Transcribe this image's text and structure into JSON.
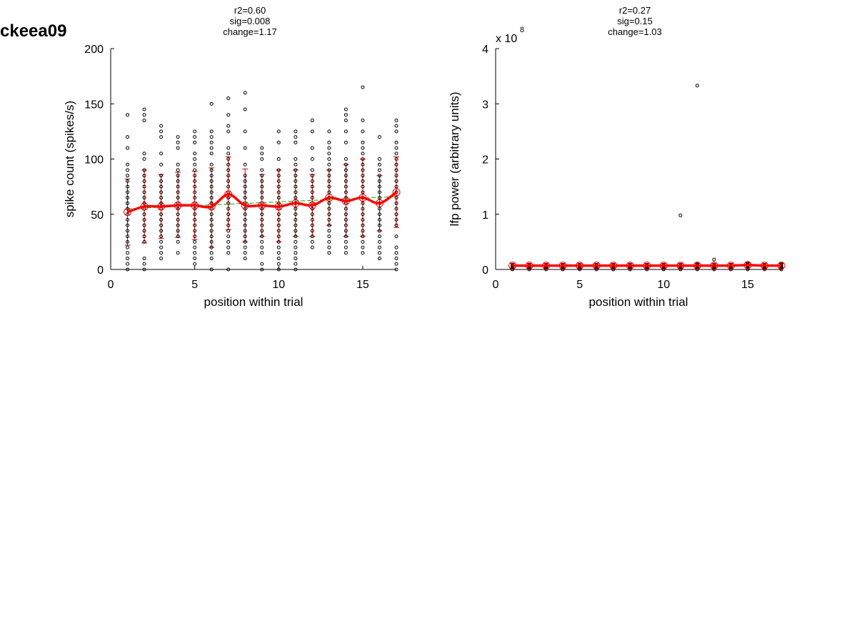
{
  "figure": {
    "label": "ckeea09",
    "colors": {
      "points": "#000000",
      "mean_line": "#ff0000",
      "error_bars": "#cc0000",
      "fit_line": "#00aa00",
      "background": "#ffffff"
    }
  },
  "chart_data": [
    {
      "type": "scatter",
      "title_lines": [
        "r2=0.60",
        "sig=0.008",
        "change=1.17"
      ],
      "xlabel": "position within trial",
      "ylabel": "spike count (spikes/s)",
      "xlim": [
        0,
        17
      ],
      "ylim": [
        0,
        200
      ],
      "xticks": [
        0,
        5,
        10,
        15
      ],
      "yticks": [
        0,
        50,
        100,
        150,
        200
      ],
      "exponent": "",
      "grid": false,
      "points": [
        {
          "x": 1,
          "y": [
            0,
            5,
            10,
            15,
            20,
            25,
            30,
            35,
            40,
            45,
            50,
            55,
            60,
            65,
            70,
            75,
            80,
            85,
            90,
            95,
            110,
            120,
            140
          ]
        },
        {
          "x": 2,
          "y": [
            0,
            5,
            10,
            25,
            30,
            35,
            40,
            45,
            50,
            55,
            60,
            65,
            70,
            75,
            80,
            85,
            90,
            100,
            105,
            135,
            140,
            145
          ]
        },
        {
          "x": 3,
          "y": [
            10,
            15,
            20,
            25,
            30,
            35,
            40,
            45,
            50,
            55,
            60,
            65,
            70,
            75,
            80,
            85,
            95,
            105,
            120,
            125,
            130
          ]
        },
        {
          "x": 4,
          "y": [
            15,
            25,
            30,
            35,
            40,
            45,
            50,
            55,
            60,
            65,
            70,
            75,
            80,
            85,
            90,
            95,
            110,
            115,
            120
          ]
        },
        {
          "x": 5,
          "y": [
            5,
            10,
            15,
            20,
            25,
            30,
            35,
            40,
            45,
            50,
            55,
            60,
            65,
            70,
            75,
            80,
            85,
            90,
            95,
            100,
            105,
            115,
            120,
            125
          ]
        },
        {
          "x": 6,
          "y": [
            0,
            10,
            15,
            20,
            25,
            30,
            35,
            40,
            45,
            50,
            55,
            60,
            65,
            70,
            75,
            80,
            85,
            90,
            95,
            105,
            110,
            115,
            120,
            125,
            150
          ]
        },
        {
          "x": 7,
          "y": [
            0,
            15,
            20,
            25,
            30,
            35,
            40,
            45,
            50,
            55,
            60,
            65,
            70,
            75,
            80,
            85,
            90,
            95,
            100,
            105,
            110,
            125,
            130,
            140,
            155
          ]
        },
        {
          "x": 8,
          "y": [
            10,
            15,
            20,
            25,
            30,
            35,
            40,
            45,
            50,
            55,
            60,
            65,
            70,
            75,
            80,
            85,
            95,
            110,
            125,
            145,
            160
          ]
        },
        {
          "x": 9,
          "y": [
            0,
            5,
            15,
            20,
            25,
            30,
            35,
            40,
            45,
            50,
            55,
            60,
            65,
            70,
            75,
            80,
            85,
            90,
            100,
            105,
            110
          ]
        },
        {
          "x": 10,
          "y": [
            0,
            5,
            10,
            15,
            20,
            25,
            30,
            35,
            40,
            45,
            50,
            55,
            60,
            65,
            70,
            75,
            80,
            85,
            90,
            100,
            115,
            125
          ]
        },
        {
          "x": 11,
          "y": [
            0,
            5,
            10,
            15,
            20,
            25,
            30,
            35,
            40,
            45,
            50,
            55,
            60,
            65,
            70,
            75,
            80,
            85,
            90,
            95,
            100,
            115,
            120,
            125
          ]
        },
        {
          "x": 12,
          "y": [
            20,
            25,
            30,
            35,
            40,
            45,
            50,
            55,
            60,
            65,
            70,
            75,
            80,
            85,
            90,
            100,
            110,
            125,
            135
          ]
        },
        {
          "x": 13,
          "y": [
            15,
            20,
            25,
            30,
            35,
            40,
            45,
            50,
            55,
            60,
            65,
            70,
            75,
            80,
            85,
            90,
            95,
            100,
            105,
            110,
            115,
            125
          ]
        },
        {
          "x": 14,
          "y": [
            15,
            20,
            25,
            30,
            35,
            40,
            45,
            50,
            55,
            60,
            65,
            70,
            75,
            80,
            85,
            90,
            95,
            100,
            115,
            125,
            135,
            140,
            145
          ]
        },
        {
          "x": 15,
          "y": [
            15,
            20,
            25,
            30,
            35,
            40,
            45,
            50,
            55,
            60,
            65,
            70,
            75,
            80,
            85,
            90,
            95,
            100,
            105,
            110,
            115,
            125,
            135,
            165
          ]
        },
        {
          "x": 16,
          "y": [
            10,
            15,
            20,
            25,
            30,
            35,
            40,
            45,
            50,
            55,
            60,
            65,
            70,
            75,
            80,
            85,
            90,
            95,
            100,
            120
          ]
        },
        {
          "x": 17,
          "y": [
            0,
            5,
            10,
            15,
            20,
            30,
            40,
            45,
            50,
            55,
            60,
            65,
            70,
            75,
            80,
            85,
            90,
            95,
            100,
            105,
            110,
            115,
            125,
            130,
            135
          ]
        }
      ],
      "series": [
        {
          "role": "mean",
          "x": [
            1,
            2,
            3,
            4,
            5,
            6,
            7,
            8,
            9,
            10,
            11,
            12,
            13,
            14,
            15,
            16,
            17
          ],
          "y": [
            52,
            57,
            57,
            58,
            58,
            57,
            68,
            58,
            58,
            57,
            60,
            58,
            65,
            62,
            65,
            60,
            70
          ]
        },
        {
          "role": "error",
          "x": [
            1,
            2,
            3,
            4,
            5,
            6,
            7,
            8,
            9,
            10,
            11,
            12,
            13,
            14,
            15,
            16,
            17
          ],
          "low": [
            22,
            24,
            28,
            29,
            27,
            20,
            36,
            25,
            30,
            25,
            30,
            30,
            40,
            30,
            30,
            35,
            38
          ],
          "high": [
            82,
            90,
            86,
            88,
            89,
            92,
            102,
            91,
            86,
            90,
            90,
            86,
            90,
            95,
            100,
            85,
            102
          ]
        },
        {
          "role": "fit",
          "x": [
            1,
            17
          ],
          "y": [
            55,
            66
          ]
        }
      ]
    },
    {
      "type": "scatter",
      "title_lines": [
        "r2=0.27",
        "sig=0.15",
        "change=1.03"
      ],
      "xlabel": "position within trial",
      "ylabel": "lfp power (arbitrary units)",
      "xlim": [
        0,
        17
      ],
      "ylim": [
        0,
        4
      ],
      "xticks": [
        0,
        5,
        10,
        15
      ],
      "yticks": [
        0,
        1,
        2,
        3,
        4
      ],
      "exponent": {
        "base": "x 10",
        "power": "8"
      },
      "grid": false,
      "points": [
        {
          "x": 1,
          "y": [
            0,
            0.02,
            0.04,
            0.06,
            0.08
          ]
        },
        {
          "x": 2,
          "y": [
            0,
            0.02,
            0.04,
            0.06,
            0.08
          ]
        },
        {
          "x": 3,
          "y": [
            0,
            0.02,
            0.04,
            0.06,
            0.08
          ]
        },
        {
          "x": 4,
          "y": [
            0,
            0.02,
            0.04,
            0.06,
            0.08
          ]
        },
        {
          "x": 5,
          "y": [
            0,
            0.02,
            0.04,
            0.06,
            0.08
          ]
        },
        {
          "x": 6,
          "y": [
            0,
            0.02,
            0.04,
            0.06,
            0.08
          ]
        },
        {
          "x": 7,
          "y": [
            0,
            0.02,
            0.04,
            0.06,
            0.08
          ]
        },
        {
          "x": 8,
          "y": [
            0,
            0.02,
            0.04,
            0.06,
            0.08
          ]
        },
        {
          "x": 9,
          "y": [
            0,
            0.02,
            0.04,
            0.06,
            0.08
          ]
        },
        {
          "x": 10,
          "y": [
            0,
            0.02,
            0.04,
            0.06,
            0.08
          ]
        },
        {
          "x": 11,
          "y": [
            0,
            0.02,
            0.04,
            0.06,
            0.08,
            0.98
          ]
        },
        {
          "x": 12,
          "y": [
            0,
            0.02,
            0.04,
            0.06,
            0.08,
            0.1,
            3.33
          ]
        },
        {
          "x": 13,
          "y": [
            0,
            0.02,
            0.04,
            0.06,
            0.08,
            0.18
          ]
        },
        {
          "x": 14,
          "y": [
            0,
            0.02,
            0.04,
            0.06,
            0.08
          ]
        },
        {
          "x": 15,
          "y": [
            0,
            0.02,
            0.04,
            0.06,
            0.08,
            0.1,
            0.12
          ]
        },
        {
          "x": 16,
          "y": [
            0,
            0.02,
            0.04,
            0.06,
            0.08
          ]
        },
        {
          "x": 17,
          "y": [
            0,
            0.02,
            0.04,
            0.06,
            0.08,
            0.1
          ]
        }
      ],
      "series": [
        {
          "role": "mean",
          "x": [
            1,
            2,
            3,
            4,
            5,
            6,
            7,
            8,
            9,
            10,
            11,
            12,
            13,
            14,
            15,
            16,
            17
          ],
          "y": [
            0.07,
            0.07,
            0.07,
            0.07,
            0.07,
            0.07,
            0.07,
            0.07,
            0.07,
            0.07,
            0.07,
            0.07,
            0.07,
            0.07,
            0.08,
            0.07,
            0.07
          ]
        },
        {
          "role": "error",
          "x": [
            1,
            2,
            3,
            4,
            5,
            6,
            7,
            8,
            9,
            10,
            11,
            12,
            13,
            14,
            15,
            16,
            17
          ],
          "low": [
            0.03,
            0.03,
            0.03,
            0.03,
            0.03,
            0.03,
            0.03,
            0.03,
            0.03,
            0.03,
            0.03,
            0.03,
            0.03,
            0.03,
            0.03,
            0.03,
            0.03
          ],
          "high": [
            0.11,
            0.11,
            0.11,
            0.11,
            0.11,
            0.11,
            0.11,
            0.11,
            0.11,
            0.11,
            0.11,
            0.11,
            0.11,
            0.11,
            0.12,
            0.11,
            0.11
          ]
        },
        {
          "role": "fit",
          "x": [
            1,
            17
          ],
          "y": [
            0.07,
            0.07
          ]
        }
      ]
    }
  ]
}
